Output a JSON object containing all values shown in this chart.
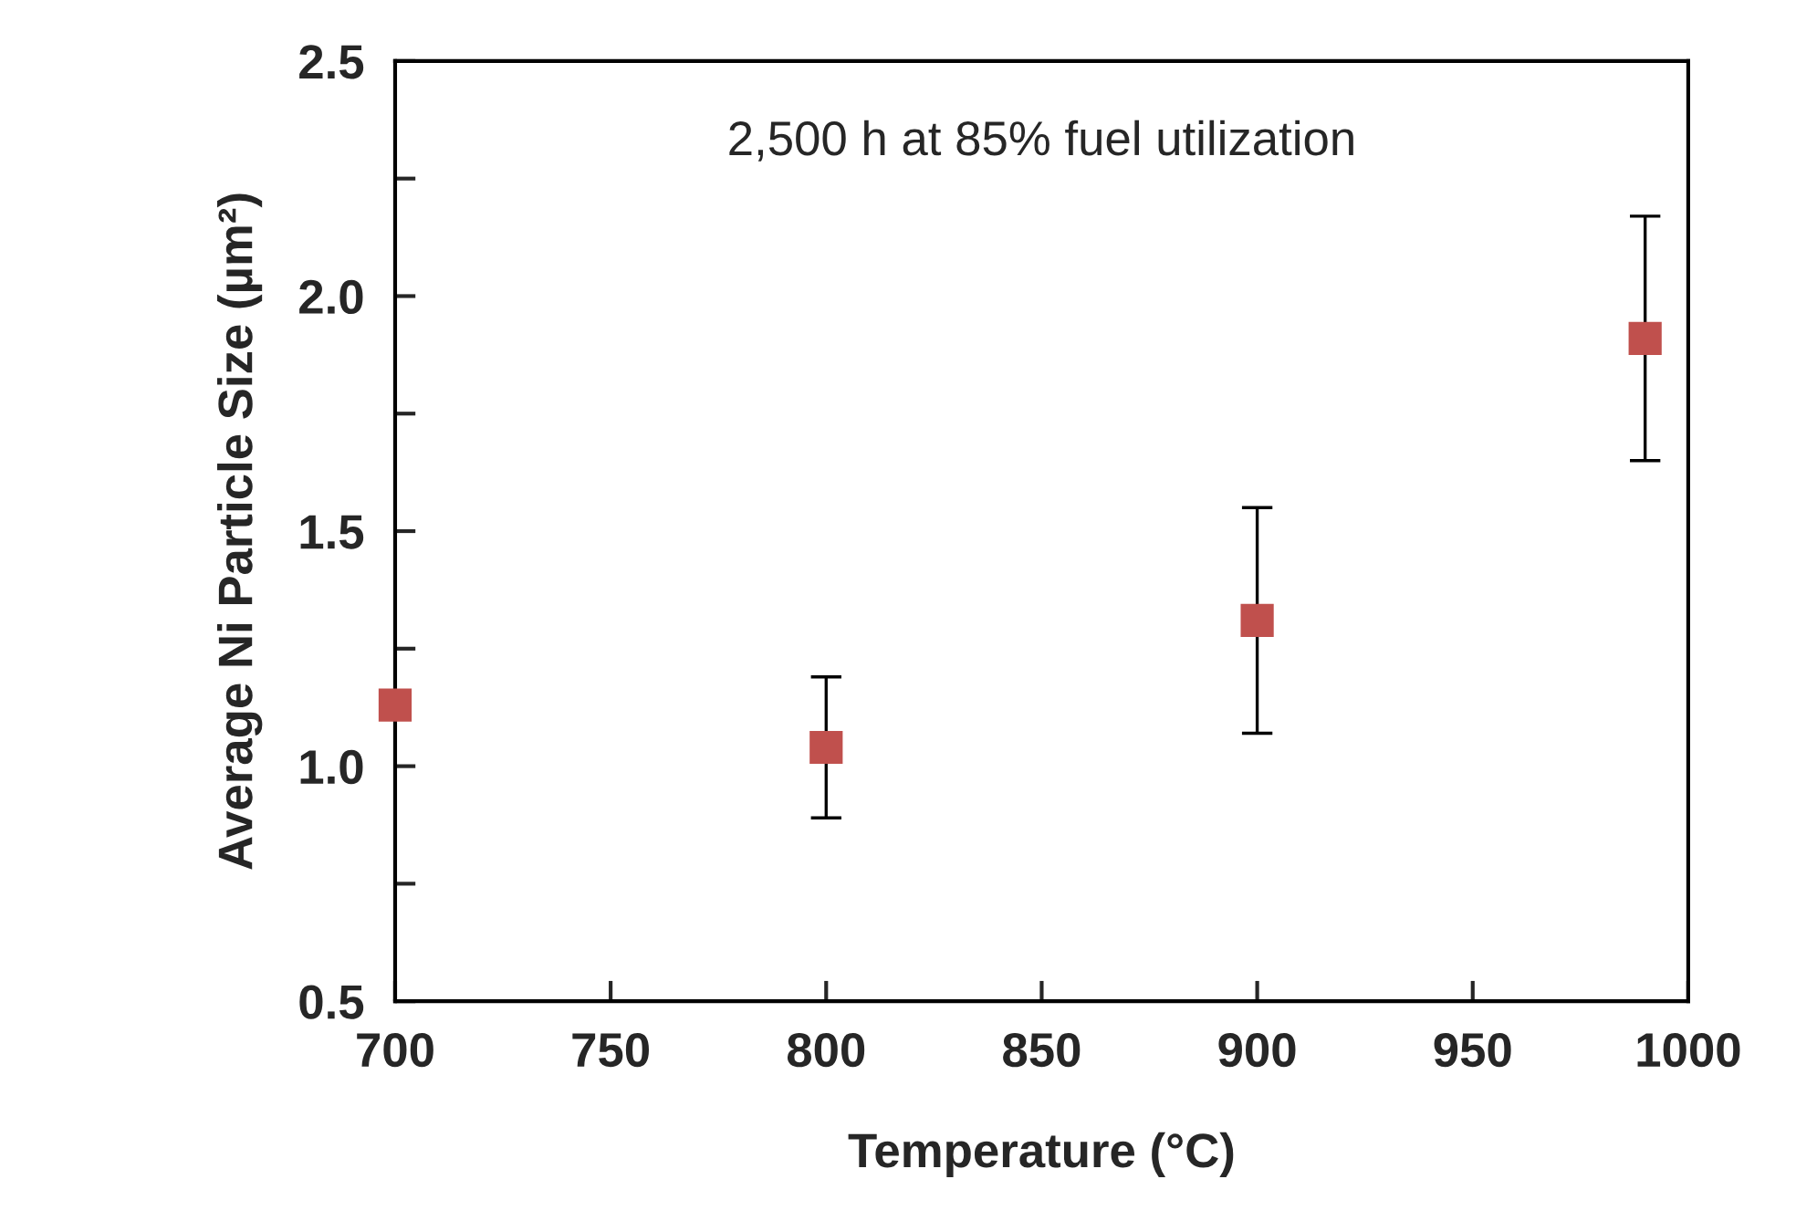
{
  "chart_data": {
    "type": "scatter",
    "xlabel": "Temperature (°C)",
    "ylabel": "Average Ni Particle Size (µm²)",
    "annotations": [
      "2,500 h at 85% fuel utilization"
    ],
    "x": [
      700,
      800,
      900,
      990
    ],
    "series": [
      {
        "color": "#c0504d",
        "values": [
          1.13,
          1.04,
          1.31,
          1.91
        ],
        "errors": [
          null,
          0.15,
          0.24,
          0.26
        ]
      }
    ],
    "marker": "square",
    "xlim": [
      700,
      1000
    ],
    "xticks": [
      700,
      750,
      800,
      850,
      900,
      950,
      1000
    ],
    "ylim": [
      0.5,
      2.5
    ],
    "yticks": [
      0.5,
      {
        "value": 0.75,
        "label": null
      },
      {
        "value": 1,
        "label": "1.0"
      },
      {
        "value": 1.25,
        "label": null
      },
      1.5,
      {
        "value": 1.75,
        "label": null
      },
      {
        "value": 2,
        "label": "2.0"
      },
      {
        "value": 2.25,
        "label": null
      },
      2.5
    ],
    "grid": false,
    "legend": false
  }
}
